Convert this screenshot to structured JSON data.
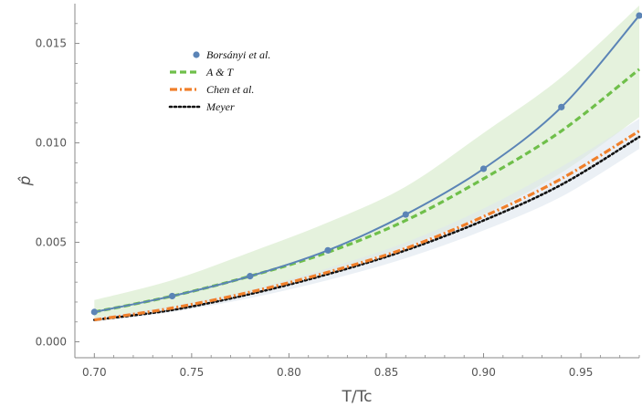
{
  "chart_data": {
    "type": "line",
    "xlabel": "T/Tc",
    "ylabel": "p̂",
    "xlim": [
      0.69,
      0.98
    ],
    "ylim": [
      -0.0008,
      0.017
    ],
    "x_ticks": [
      "0.70",
      "0.75",
      "0.80",
      "0.85",
      "0.90",
      "0.95"
    ],
    "y_ticks": [
      "0.000",
      "0.005",
      "0.010",
      "0.015"
    ],
    "x_tick_values": [
      0.7,
      0.75,
      0.8,
      0.85,
      0.9,
      0.95
    ],
    "y_tick_values": [
      0.0,
      0.005,
      0.01,
      0.015
    ],
    "grid": false,
    "legend_position": "top-left",
    "series": [
      {
        "name": "Borsányi et al.",
        "style": "solid-with-points",
        "color": "#5b84b6",
        "x": [
          0.7,
          0.74,
          0.78,
          0.82,
          0.86,
          0.9,
          0.94,
          0.98
        ],
        "y": [
          0.0015,
          0.0023,
          0.0033,
          0.0046,
          0.0064,
          0.0087,
          0.0118,
          0.0164
        ]
      },
      {
        "name": "A & T",
        "style": "dashed",
        "color": "#6fbf4a",
        "x": [
          0.7,
          0.74,
          0.78,
          0.82,
          0.86,
          0.9,
          0.94,
          0.98
        ],
        "y": [
          0.0015,
          0.0023,
          0.0033,
          0.0045,
          0.0061,
          0.0082,
          0.0106,
          0.0137
        ]
      },
      {
        "name": "Chen et al.",
        "style": "dash-dot",
        "color": "#f07f2a",
        "x": [
          0.7,
          0.74,
          0.78,
          0.82,
          0.86,
          0.9,
          0.94,
          0.98
        ],
        "y": [
          0.0011,
          0.0017,
          0.0025,
          0.0035,
          0.0047,
          0.0063,
          0.0082,
          0.0106
        ]
      },
      {
        "name": "Meyer",
        "style": "dotted",
        "color": "#111111",
        "x": [
          0.7,
          0.74,
          0.78,
          0.82,
          0.86,
          0.9,
          0.94,
          0.98
        ],
        "y": [
          0.0011,
          0.0016,
          0.0024,
          0.0034,
          0.0046,
          0.0061,
          0.0079,
          0.0103
        ]
      }
    ],
    "bands": [
      {
        "of_series": "A & T",
        "color": "#dcedd2",
        "x": [
          0.7,
          0.74,
          0.78,
          0.82,
          0.86,
          0.9,
          0.94,
          0.98
        ],
        "lower": [
          0.0012,
          0.0017,
          0.0025,
          0.0035,
          0.0048,
          0.0064,
          0.0085,
          0.0113
        ],
        "upper": [
          0.0021,
          0.0031,
          0.0045,
          0.006,
          0.0078,
          0.0105,
          0.0133,
          0.0169
        ]
      },
      {
        "of_series": "Meyer",
        "color": "#dde6ef",
        "x": [
          0.7,
          0.74,
          0.78,
          0.82,
          0.86,
          0.9,
          0.94,
          0.98
        ],
        "lower": [
          0.001,
          0.0015,
          0.0022,
          0.0031,
          0.0042,
          0.0056,
          0.0073,
          0.0097
        ],
        "upper": [
          0.0012,
          0.0018,
          0.0026,
          0.0037,
          0.005,
          0.0067,
          0.0088,
          0.0112
        ]
      }
    ]
  }
}
